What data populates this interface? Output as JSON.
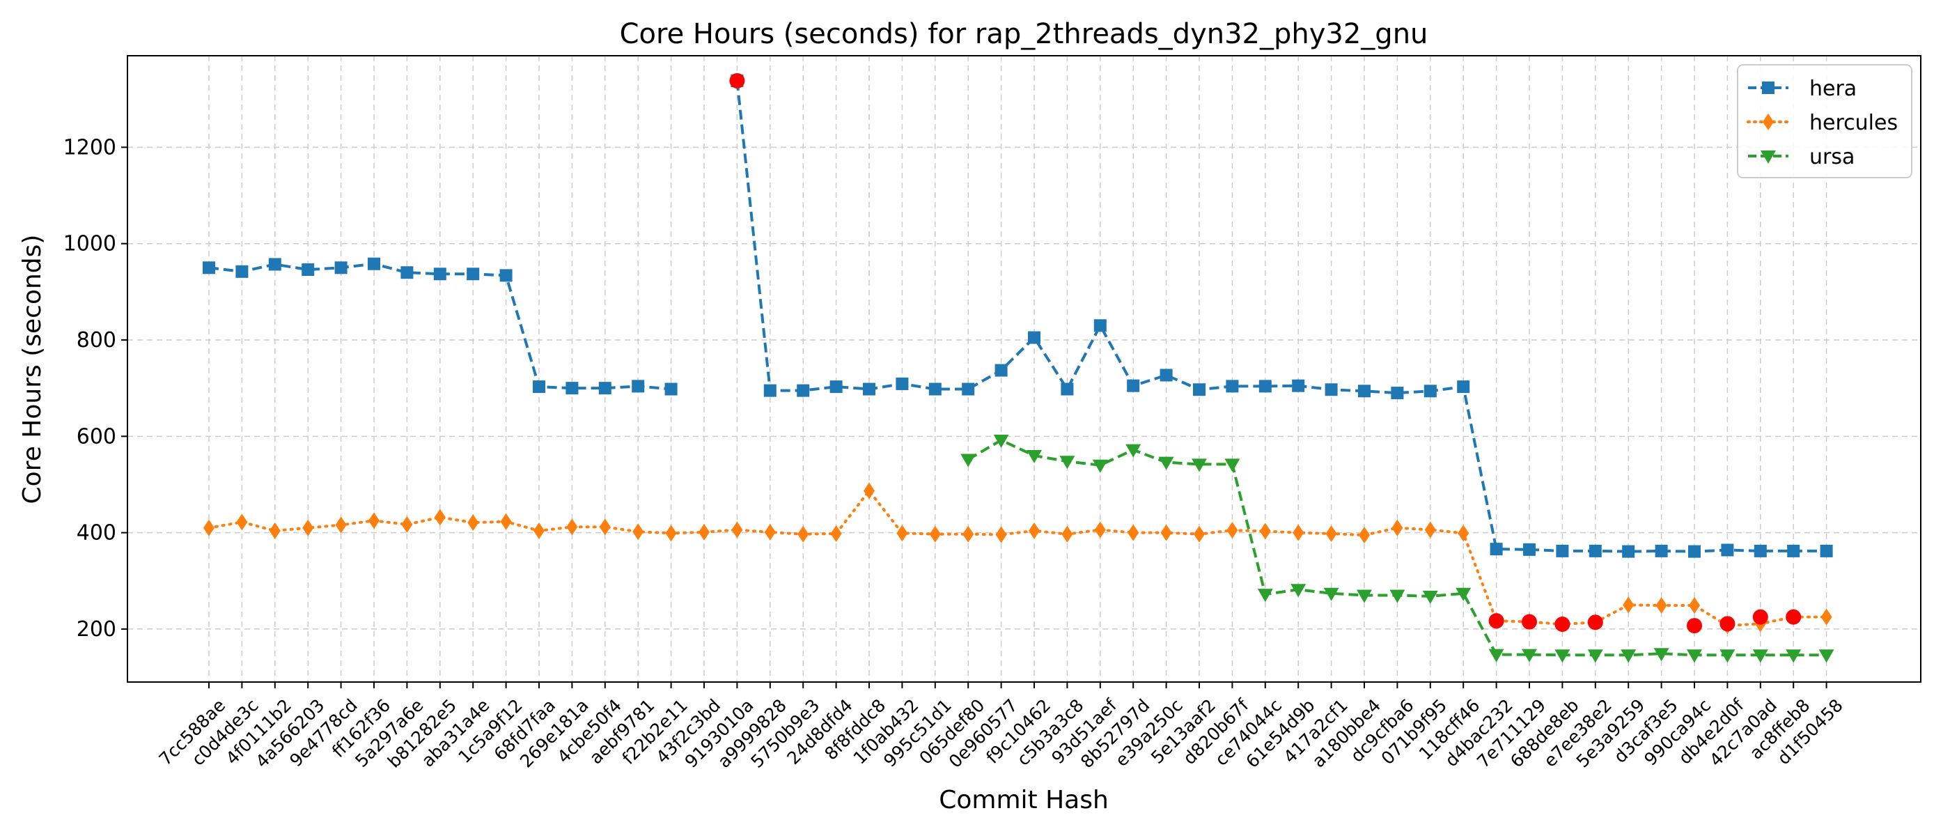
{
  "chart_data": {
    "type": "line",
    "title": "Core Hours (seconds) for rap_2threads_dyn32_phy32_gnu",
    "xlabel": "Commit Hash",
    "ylabel": "Core Hours (seconds)",
    "ylim": [
      90,
      1390
    ],
    "yticks": [
      200,
      400,
      600,
      800,
      1000,
      1200
    ],
    "grid": true,
    "legend_position": "top-right",
    "categories": [
      "7cc588ae",
      "c0d4de3c",
      "4f0111b2",
      "4a566203",
      "9e4778cd",
      "ff162f36",
      "5a297a6e",
      "b81282e5",
      "aba31a4e",
      "1c5a9f12",
      "68fd7faa",
      "269e181a",
      "4cbe50f4",
      "aebf9781",
      "f22b2e11",
      "43f2c3bd",
      "9193010a",
      "a9999828",
      "5750b9e3",
      "24d8dfd4",
      "8f8fddc8",
      "1f0ab432",
      "995c51d1",
      "065def80",
      "0e960577",
      "f9c10462",
      "c5b3a3c8",
      "93d51aef",
      "8b52797d",
      "e39a250c",
      "5e13aaf2",
      "d820b67f",
      "ce74044c",
      "61e54d9b",
      "417a2cf1",
      "a180bbe4",
      "dc9cfba6",
      "071b9f95",
      "118cff46",
      "d4bac232",
      "7e711129",
      "688de8eb",
      "e7ee38e2",
      "5e3a9259",
      "d3caf3e5",
      "990ca94c",
      "db4e2d0f",
      "42c7a0ad",
      "ac8ffeb8",
      "d1f50458"
    ],
    "series": [
      {
        "name": "hera",
        "color": "#1f77b4",
        "marker": "square",
        "linestyle": "dashed",
        "values": [
          950,
          942,
          957,
          946,
          950,
          958,
          940,
          937,
          937,
          934,
          703,
          700,
          700,
          704,
          698,
          null,
          1338,
          695,
          695,
          703,
          698,
          709,
          698,
          698,
          737,
          805,
          698,
          830,
          705,
          727,
          697,
          704,
          704,
          705,
          697,
          694,
          690,
          694,
          703,
          366,
          365,
          362,
          362,
          361,
          362,
          361,
          364,
          362,
          362,
          362
        ]
      },
      {
        "name": "hercules",
        "color": "#ff7f0e",
        "marker": "diamond",
        "linestyle": "dotted",
        "values": [
          410,
          422,
          404,
          410,
          416,
          425,
          417,
          432,
          421,
          423,
          404,
          412,
          412,
          402,
          399,
          401,
          406,
          401,
          397,
          398,
          487,
          399,
          397,
          397,
          396,
          404,
          397,
          406,
          400,
          400,
          397,
          405,
          403,
          400,
          398,
          395,
          410,
          406,
          399,
          217,
          215,
          210,
          214,
          250,
          249,
          249,
          207,
          211,
          225,
          225
        ]
      },
      {
        "name": "ursa",
        "color": "#2ca02c",
        "marker": "triangle-down",
        "linestyle": "dashed",
        "values": [
          null,
          null,
          null,
          null,
          null,
          null,
          null,
          null,
          null,
          null,
          null,
          null,
          null,
          null,
          null,
          null,
          null,
          null,
          null,
          null,
          null,
          null,
          null,
          552,
          592,
          560,
          548,
          540,
          572,
          546,
          542,
          542,
          272,
          282,
          274,
          270,
          270,
          268,
          274,
          147,
          147,
          146,
          146,
          146,
          149,
          146,
          146,
          146,
          146,
          146
        ]
      }
    ],
    "highlighted_points": [
      {
        "series": "hera",
        "category": "9193010a",
        "value": 1338,
        "color": "#ff0000"
      },
      {
        "series": "hercules",
        "category": "d4bac232",
        "value": 217,
        "color": "#ff0000"
      },
      {
        "series": "hercules",
        "category": "7e711129",
        "value": 215,
        "color": "#ff0000"
      },
      {
        "series": "hercules",
        "category": "688de8eb",
        "value": 210,
        "color": "#ff0000"
      },
      {
        "series": "hercules",
        "category": "e7ee38e2",
        "value": 214,
        "color": "#ff0000"
      },
      {
        "series": "hercules",
        "category": "990ca94c",
        "value": 207,
        "color": "#ff0000"
      },
      {
        "series": "hercules",
        "category": "db4e2d0f",
        "value": 211,
        "color": "#ff0000"
      },
      {
        "series": "hercules",
        "category": "42c7a0ad",
        "value": 225,
        "color": "#ff0000"
      },
      {
        "series": "hercules",
        "category": "ac8ffeb8",
        "value": 225,
        "color": "#ff0000"
      }
    ]
  }
}
